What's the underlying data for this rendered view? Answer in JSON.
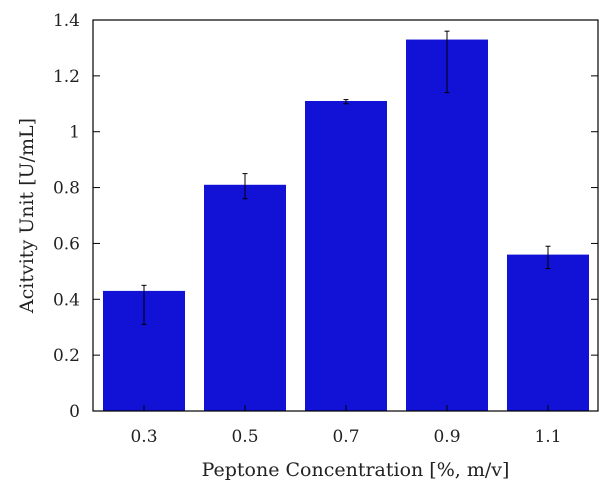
{
  "chart_data": {
    "type": "bar",
    "title": "",
    "xlabel": "Peptone  Concentration [%, m/v]",
    "ylabel": "Acitvity Unit [U/mL]",
    "categories": [
      "0.3",
      "0.5",
      "0.7",
      "0.9",
      "1.1"
    ],
    "values": [
      0.43,
      0.81,
      1.11,
      1.33,
      0.56
    ],
    "error_low": [
      0.12,
      0.05,
      0.01,
      0.19,
      0.05
    ],
    "error_high": [
      0.02,
      0.04,
      0.005,
      0.03,
      0.03
    ],
    "ylim": [
      0,
      1.4
    ],
    "yticks": [
      {
        "value": 0,
        "label": "0"
      },
      {
        "value": 0.2,
        "label": "0.2"
      },
      {
        "value": 0.4,
        "label": "0.4"
      },
      {
        "value": 0.6,
        "label": "0.6"
      },
      {
        "value": 0.8,
        "label": "0.8"
      },
      {
        "value": 1.0,
        "label": "1"
      },
      {
        "value": 1.2,
        "label": "1.2"
      },
      {
        "value": 1.4,
        "label": "1.4"
      }
    ],
    "grid": false,
    "bar_color": "#1212d6",
    "error_bar_color": "#000000"
  }
}
